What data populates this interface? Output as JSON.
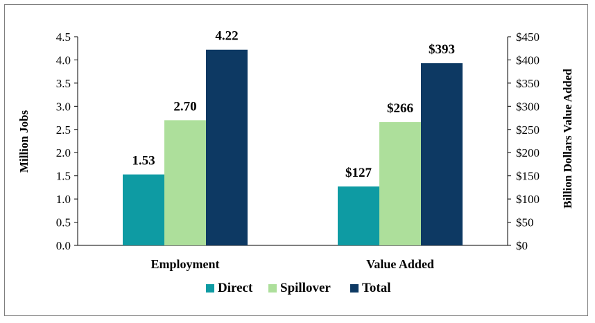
{
  "chart_data": {
    "type": "bar",
    "categories": [
      "Employment",
      "Value Added"
    ],
    "series": [
      {
        "name": "Direct",
        "color": "#0e9ba3",
        "values": [
          1.53,
          127
        ],
        "labels": [
          "1.53",
          "$127"
        ]
      },
      {
        "name": "Spillover",
        "color": "#addf9b",
        "values": [
          2.7,
          266
        ],
        "labels": [
          "2.70",
          "$266"
        ]
      },
      {
        "name": "Total",
        "color": "#0d3963",
        "values": [
          4.22,
          393
        ],
        "labels": [
          "4.22",
          "$393"
        ]
      }
    ],
    "axis_assignment": [
      "left",
      "right"
    ],
    "ylabel": "Million Jobs",
    "ylim": [
      0,
      4.5
    ],
    "yticks": [
      "0.0",
      "0.5",
      "1.0",
      "1.5",
      "2.0",
      "2.5",
      "3.0",
      "3.5",
      "4.0",
      "4.5"
    ],
    "y2label": "Billion Dollars Value Added",
    "y2lim": [
      0,
      450
    ],
    "y2ticks": [
      "$0",
      "$50",
      "$100",
      "$150",
      "$200",
      "$250",
      "$300",
      "$350",
      "$400",
      "$450"
    ],
    "grid": false,
    "legend_position": "bottom"
  }
}
